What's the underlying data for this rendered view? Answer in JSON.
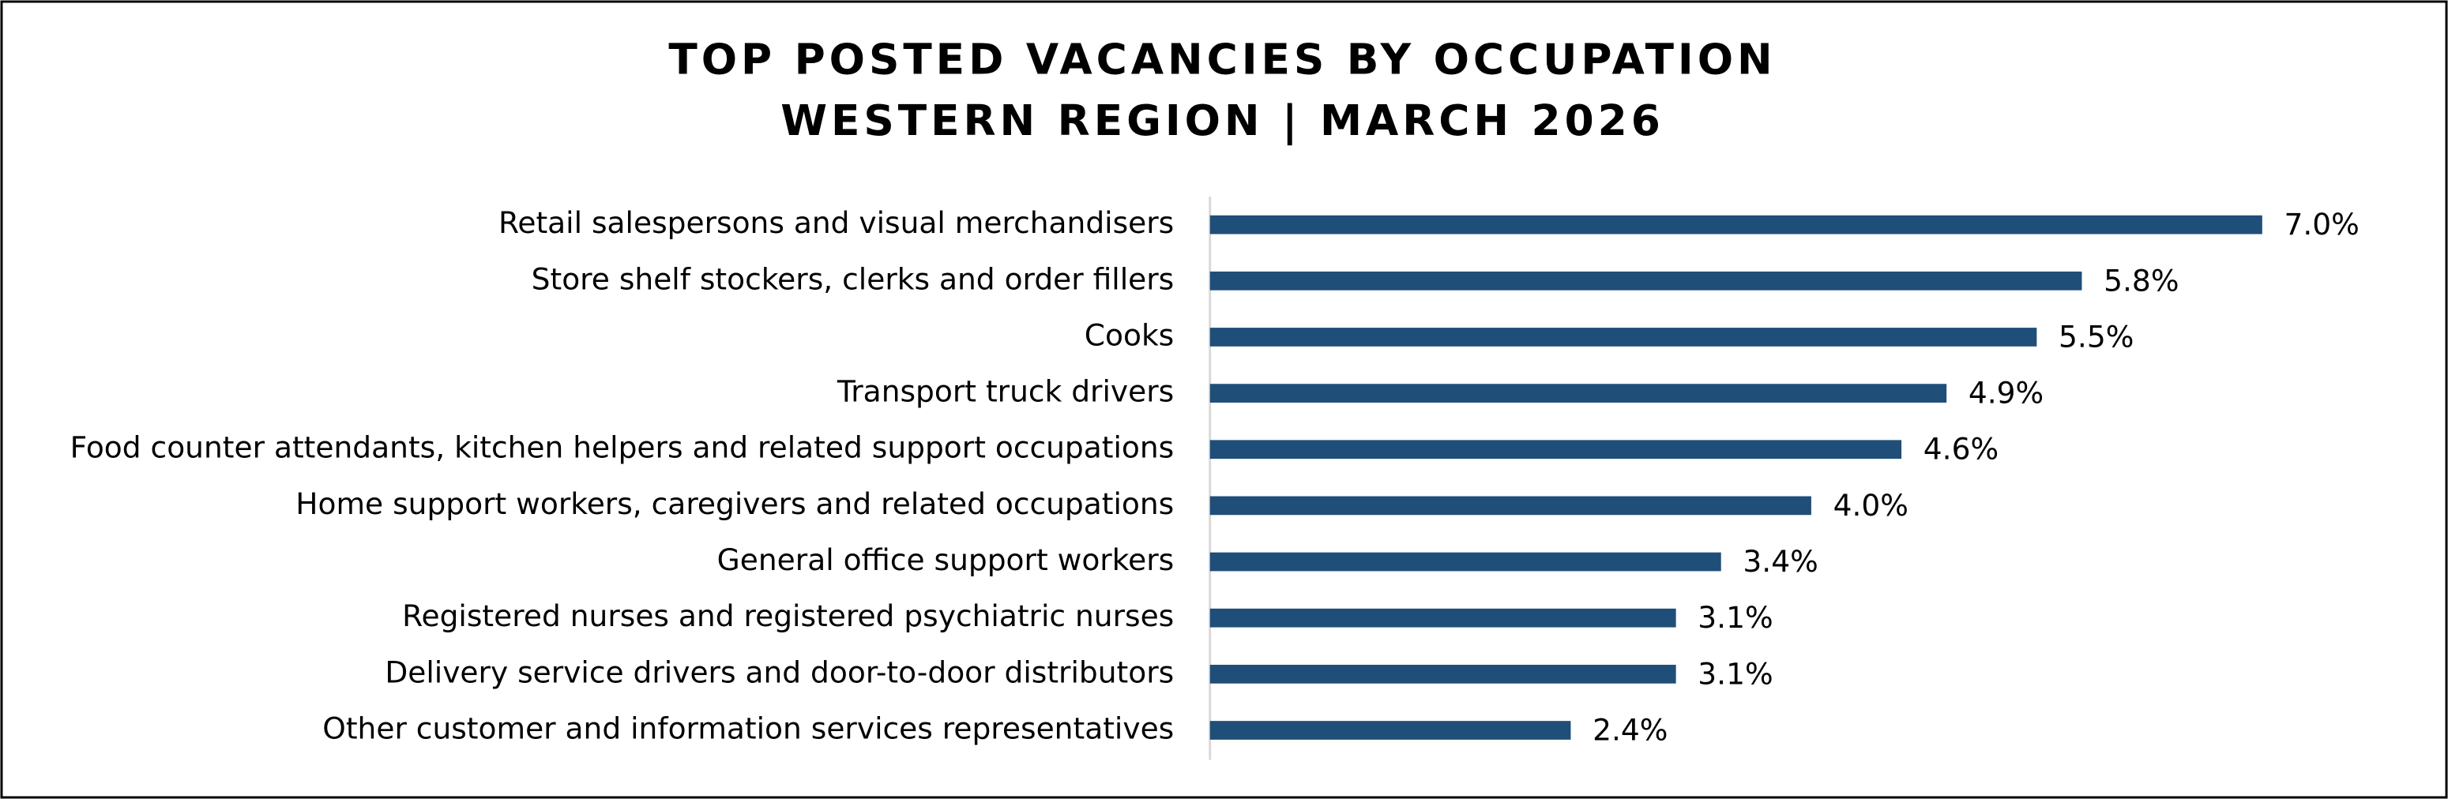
{
  "chart_data": {
    "type": "bar",
    "orientation": "horizontal",
    "title": "TOP POSTED VACANCIES BY OCCUPATION",
    "subtitle": "WESTERN REGION | MARCH 2026",
    "categories": [
      "Retail salespersons and visual merchandisers",
      "Store shelf stockers, clerks and order fillers",
      "Cooks",
      "Transport truck drivers",
      "Food counter attendants, kitchen helpers and related support occupations",
      "Home support workers, caregivers and related occupations",
      "General office support workers",
      "Registered nurses and registered psychiatric nurses",
      "Delivery service drivers and door-to-door distributors",
      "Other customer and information services representatives"
    ],
    "values": [
      7.0,
      5.8,
      5.5,
      4.9,
      4.6,
      4.0,
      3.4,
      3.1,
      3.1,
      2.4
    ],
    "value_labels": [
      "7.0%",
      "5.8%",
      "5.5%",
      "4.9%",
      "4.6%",
      "4.0%",
      "3.4%",
      "3.1%",
      "3.1%",
      "2.4%"
    ],
    "color": "#1f4e79"
  }
}
